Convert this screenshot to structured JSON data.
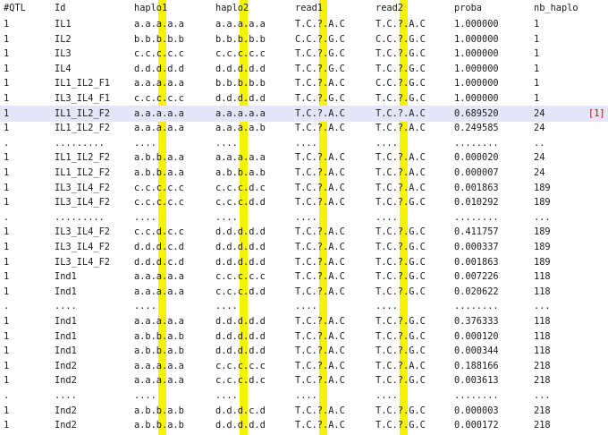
{
  "columns": [
    "#QTL",
    "Id",
    "haplo1",
    "haplo2",
    "read1",
    "read2",
    "proba",
    "nb_haplo"
  ],
  "rows": [
    {
      "qtl": "1",
      "id": "IL1",
      "h1": "a.a.a.a.a",
      "h2": "a.a.a.a.a",
      "r1": "T.C.?.A.C",
      "r2": "T.C.?.A.C",
      "p": "1.000000",
      "n": "1"
    },
    {
      "qtl": "1",
      "id": "IL2",
      "h1": "b.b.b.b.b",
      "h2": "b.b.b.b.b",
      "r1": "C.C.?.G.C",
      "r2": "C.C.?.G.C",
      "p": "1.000000",
      "n": "1"
    },
    {
      "qtl": "1",
      "id": "IL3",
      "h1": "c.c.c.c.c",
      "h2": "c.c.c.c.c",
      "r1": "T.C.?.G.C",
      "r2": "T.C.?.G.C",
      "p": "1.000000",
      "n": "1"
    },
    {
      "qtl": "1",
      "id": "IL4",
      "h1": "d.d.d.d.d",
      "h2": "d.d.d.d.d",
      "r1": "T.C.?.G.C",
      "r2": "T.C.?.G.C",
      "p": "1.000000",
      "n": "1"
    },
    {
      "qtl": "1",
      "id": "IL1_IL2_F1",
      "h1": "a.a.a.a.a",
      "h2": "b.b.b.b.b",
      "r1": "T.C.?.A.C",
      "r2": "C.C.?.G.C",
      "p": "1.000000",
      "n": "1"
    },
    {
      "qtl": "1",
      "id": "IL3_IL4_F1",
      "h1": "c.c.c.c.c",
      "h2": "d.d.d.d.d",
      "r1": "T.C.?.G.C",
      "r2": "T.C.?.G.C",
      "p": "1.000000",
      "n": "1"
    },
    {
      "qtl": "1",
      "id": "IL1_IL2_F2",
      "h1": "a.a.a.a.a",
      "h2": "a.a.a.a.a",
      "r1": "T.C.?.A.C",
      "r2": "T.C.?.A.C",
      "p": "0.689520",
      "n": "24",
      "mark": "[1]",
      "sel": true
    },
    {
      "qtl": "1",
      "id": "IL1_IL2_F2",
      "h1": "a.a.a.a.a",
      "h2": "a.a.a.a.b",
      "r1": "T.C.?.A.C",
      "r2": "T.C.?.A.C",
      "p": "0.249585",
      "n": "24"
    },
    {
      "qtl": ".",
      "id": ".........",
      "h1": "....",
      "h2": "....",
      "r1": "....",
      "r2": "....",
      "p": "........",
      "n": ".."
    },
    {
      "qtl": "1",
      "id": "IL1_IL2_F2",
      "h1": "a.b.b.a.a",
      "h2": "a.a.a.a.a",
      "r1": "T.C.?.A.C",
      "r2": "T.C.?.A.C",
      "p": "0.000020",
      "n": "24"
    },
    {
      "qtl": "1",
      "id": "IL1_IL2_F2",
      "h1": "a.b.b.a.a",
      "h2": "a.b.b.a.b",
      "r1": "T.C.?.A.C",
      "r2": "T.C.?.A.C",
      "p": "0.000007",
      "n": "24"
    },
    {
      "qtl": "1",
      "id": "IL3_IL4_F2",
      "h1": "c.c.c.c.c",
      "h2": "c.c.c.d.c",
      "r1": "T.C.?.A.C",
      "r2": "T.C.?.A.C",
      "p": "0.001863",
      "n": "189"
    },
    {
      "qtl": "1",
      "id": "IL3_IL4_F2",
      "h1": "c.c.c.c.c",
      "h2": "c.c.c.d.d",
      "r1": "T.C.?.A.C",
      "r2": "T.C.?.G.C",
      "p": "0.010292",
      "n": "189"
    },
    {
      "qtl": ".",
      "id": ".........",
      "h1": "....",
      "h2": "....",
      "r1": "....",
      "r2": "....",
      "p": "........",
      "n": "..."
    },
    {
      "qtl": "1",
      "id": "IL3_IL4_F2",
      "h1": "c.c.d.c.c",
      "h2": "d.d.d.d.d",
      "r1": "T.C.?.A.C",
      "r2": "T.C.?.G.C",
      "p": "0.411757",
      "n": "189"
    },
    {
      "qtl": "1",
      "id": "IL3_IL4_F2",
      "h1": "d.d.d.c.d",
      "h2": "d.d.d.d.d",
      "r1": "T.C.?.A.C",
      "r2": "T.C.?.G.C",
      "p": "0.000337",
      "n": "189"
    },
    {
      "qtl": "1",
      "id": "IL3_IL4_F2",
      "h1": "d.d.d.c.d",
      "h2": "d.d.d.d.d",
      "r1": "T.C.?.A.C",
      "r2": "T.C.?.G.C",
      "p": "0.001863",
      "n": "189"
    },
    {
      "qtl": "1",
      "id": "Ind1",
      "h1": "a.a.a.a.a",
      "h2": "c.c.c.c.c",
      "r1": "T.C.?.A.C",
      "r2": "T.C.?.G.C",
      "p": "0.007226",
      "n": "118"
    },
    {
      "qtl": "1",
      "id": "Ind1",
      "h1": "a.a.a.a.a",
      "h2": "c.c.c.d.d",
      "r1": "T.C.?.A.C",
      "r2": "T.C.?.G.C",
      "p": "0.020622",
      "n": "118"
    },
    {
      "qtl": ".",
      "id": "....",
      "h1": "....",
      "h2": "....",
      "r1": "....",
      "r2": "....",
      "p": "........",
      "n": "..."
    },
    {
      "qtl": "1",
      "id": "Ind1",
      "h1": "a.a.a.a.a",
      "h2": "d.d.d.d.d",
      "r1": "T.C.?.A.C",
      "r2": "T.C.?.G.C",
      "p": "0.376333",
      "n": "118"
    },
    {
      "qtl": "1",
      "id": "Ind1",
      "h1": "a.b.b.a.b",
      "h2": "d.d.d.d.d",
      "r1": "T.C.?.A.C",
      "r2": "T.C.?.G.C",
      "p": "0.000120",
      "n": "118"
    },
    {
      "qtl": "1",
      "id": "Ind1",
      "h1": "a.b.b.a.b",
      "h2": "d.d.d.d.d",
      "r1": "T.C.?.A.C",
      "r2": "T.C.?.G.C",
      "p": "0.000344",
      "n": "118"
    },
    {
      "qtl": "1",
      "id": "Ind2",
      "h1": "a.a.a.a.a",
      "h2": "c.c.c.c.c",
      "r1": "T.C.?.A.C",
      "r2": "T.C.?.A.C",
      "p": "0.188166",
      "n": "218"
    },
    {
      "qtl": "1",
      "id": "Ind2",
      "h1": "a.a.a.a.a",
      "h2": "c.c.c.d.c",
      "r1": "T.C.?.A.C",
      "r2": "T.C.?.G.C",
      "p": "0.003613",
      "n": "218"
    },
    {
      "qtl": ".",
      "id": "....",
      "h1": "....",
      "h2": "....",
      "r1": "....",
      "r2": "....",
      "p": "........",
      "n": "..."
    },
    {
      "qtl": "1",
      "id": "Ind2",
      "h1": "a.b.b.a.b",
      "h2": "d.d.d.c.d",
      "r1": "T.C.?.A.C",
      "r2": "T.C.?.G.C",
      "p": "0.000003",
      "n": "218"
    },
    {
      "qtl": "1",
      "id": "Ind2",
      "h1": "a.b.b.a.b",
      "h2": "d.d.d.d.d",
      "r1": "T.C.?.A.C",
      "r2": "T.C.?.G.C",
      "p": "0.000172",
      "n": "218"
    }
  ],
  "colors": {
    "highlight": "#f4f400",
    "selected_row": "#e6e6fa",
    "marker": "#d40000"
  }
}
